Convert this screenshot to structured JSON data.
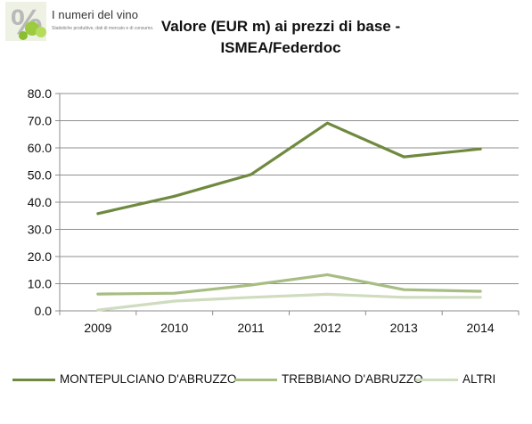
{
  "logo": {
    "title": "I numeri del vino",
    "subtitle": "Statistiche produttive, dati di mercato e di consumo.",
    "symbol": "%"
  },
  "chart_data": {
    "type": "line",
    "title_line1": "Valore (EUR m) ai prezzi di base -",
    "title_line2": "ISMEA/Federdoc",
    "xlabel": "",
    "ylabel": "",
    "x": [
      "2009",
      "2010",
      "2011",
      "2012",
      "2013",
      "2014"
    ],
    "yticks": [
      "0.0",
      "10.0",
      "20.0",
      "30.0",
      "40.0",
      "50.0",
      "60.0",
      "70.0",
      "80.0"
    ],
    "ylim": [
      0,
      80
    ],
    "grid": true,
    "legend_position": "bottom",
    "series": [
      {
        "name": "MONTEPULCIANO D'ABRUZZO",
        "color": "#6f8a3f",
        "values": [
          35.8,
          42.2,
          50.2,
          69.1,
          56.7,
          59.6
        ]
      },
      {
        "name": "TREBBIANO D'ABRUZZO",
        "color": "#a7bd83",
        "values": [
          6.2,
          6.5,
          9.5,
          13.3,
          7.8,
          7.2
        ]
      },
      {
        "name": "ALTRI",
        "color": "#cfdcbf",
        "values": [
          0.3,
          3.6,
          5.0,
          6.1,
          5.0,
          5.0
        ]
      }
    ]
  }
}
